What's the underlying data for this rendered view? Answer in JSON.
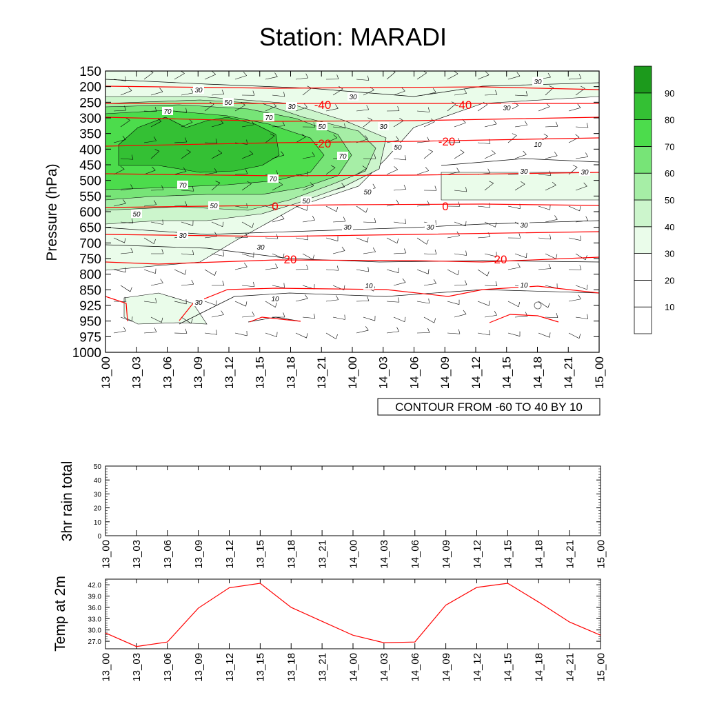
{
  "title": "Station: MARADI",
  "time_labels": [
    "13_00",
    "13_03",
    "13_06",
    "13_09",
    "13_12",
    "13_15",
    "13_18",
    "13_21",
    "14_00",
    "14_03",
    "14_06",
    "14_09",
    "14_12",
    "14_15",
    "14_18",
    "14_21",
    "15_00"
  ],
  "colors": {
    "contour_red": "#ff0000",
    "shade": [
      "#ffffff",
      "#ffffff",
      "#ffffff",
      "#eafcea",
      "#ccf5cc",
      "#a6eea6",
      "#77e477",
      "#4cdc4c",
      "#34c034",
      "#1c9a1c"
    ]
  },
  "chart_data": [
    {
      "type": "heatmap",
      "title": "Station: MARADI",
      "ylabel": "Pressure (hPa)",
      "xlabel": "",
      "y_ticks": [
        "150",
        "200",
        "250",
        "300",
        "350",
        "400",
        "450",
        "500",
        "550",
        "600",
        "650",
        "700",
        "750",
        "800",
        "850",
        "925",
        "950",
        "975",
        "1000"
      ],
      "x_ticks": [
        "13_00",
        "13_03",
        "13_06",
        "13_09",
        "13_12",
        "13_15",
        "13_18",
        "13_21",
        "14_00",
        "14_03",
        "14_06",
        "14_09",
        "14_12",
        "14_15",
        "14_18",
        "14_21",
        "15_00"
      ],
      "info_label": "CONTOUR FROM -60 TO 40 BY 10",
      "colorbar": {
        "levels": [
          "10",
          "20",
          "30",
          "40",
          "50",
          "60",
          "70",
          "80",
          "90"
        ]
      },
      "temperature_contours": [
        {
          "label": "-40",
          "level": "300 hPa"
        },
        {
          "label": "-20",
          "level": "400 hPa"
        },
        {
          "label": "0",
          "level": "600 hPa"
        },
        {
          "label": "20",
          "level": "750 hPa"
        }
      ],
      "humidity_contour_labels": [
        "30",
        "50",
        "70",
        "10"
      ]
    },
    {
      "type": "line",
      "ylabel": "3hr rain total",
      "ylim": [
        0,
        50
      ],
      "y_ticks": [
        "0",
        "10",
        "20",
        "30",
        "40",
        "50"
      ],
      "series": [
        {
          "values": [
            0,
            0,
            0,
            0,
            0,
            0,
            0,
            0,
            0,
            0,
            0,
            0,
            0,
            0,
            0,
            0,
            0
          ]
        }
      ]
    },
    {
      "type": "line",
      "ylabel": "Temp at 2m",
      "ylim": [
        25,
        43.5
      ],
      "y_ticks": [
        "27.0",
        "30.0",
        "33.0",
        "36.0",
        "39.0",
        "42.0"
      ],
      "series": [
        {
          "values": [
            29.2,
            25.6,
            26.8,
            35.8,
            41.2,
            42.4,
            36.0,
            32.3,
            28.6,
            26.6,
            26.8,
            36.6,
            41.3,
            42.4,
            37.4,
            32.1,
            28.6
          ]
        }
      ]
    }
  ]
}
